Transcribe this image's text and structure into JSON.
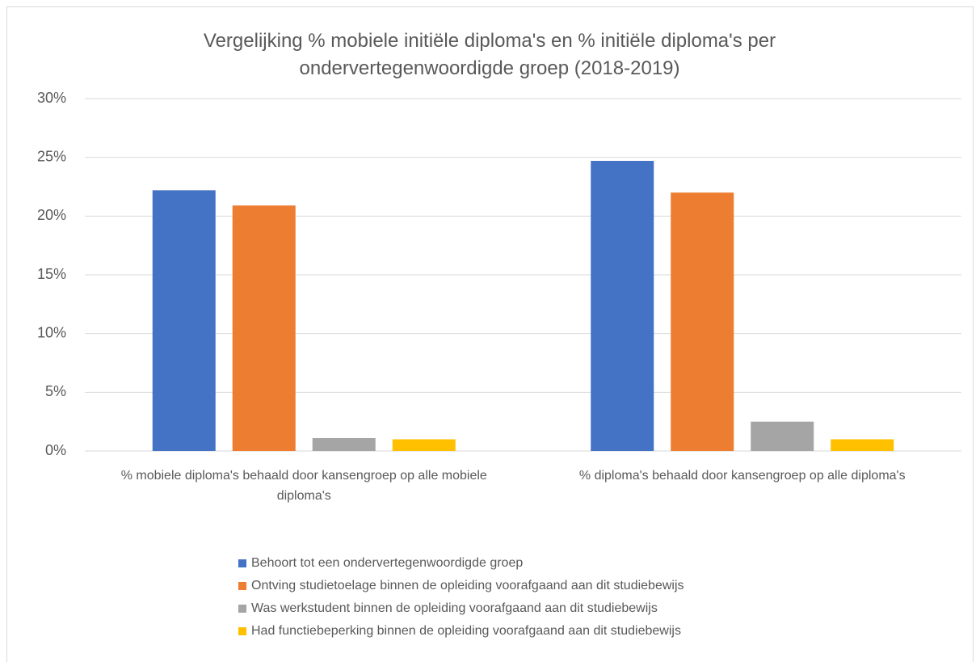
{
  "chart_data": {
    "type": "bar",
    "title": "Vergelijking % mobiele initiële diploma's en % initiële diploma's per ondervertegenwoordigde groep (2018-2019)",
    "categories": [
      "% mobiele diploma's behaald door kansengroep op alle mobiele diploma's",
      "% diploma's behaald door kansengroep op alle diploma's"
    ],
    "series": [
      {
        "name": "Behoort tot een ondervertegenwoordigde groep",
        "color": "#4472c4",
        "values": [
          22.2,
          24.7
        ]
      },
      {
        "name": "Ontving studietoelage binnen de opleiding voorafgaand aan dit studiebewijs",
        "color": "#ed7d31",
        "values": [
          20.9,
          22.0
        ]
      },
      {
        "name": "Was werkstudent binnen de opleiding voorafgaand aan dit studiebewijs",
        "color": "#a5a5a5",
        "values": [
          1.1,
          2.5
        ]
      },
      {
        "name": "Had functiebeperking binnen de opleiding voorafgaand aan dit studiebewijs",
        "color": "#ffc000",
        "values": [
          1.0,
          1.0
        ]
      }
    ],
    "ylim": [
      0,
      30
    ],
    "yticks": [
      {
        "value": 0,
        "label": "0%"
      },
      {
        "value": 5,
        "label": "5%"
      },
      {
        "value": 10,
        "label": "10%"
      },
      {
        "value": 15,
        "label": "15%"
      },
      {
        "value": 20,
        "label": "20%"
      },
      {
        "value": 25,
        "label": "25%"
      },
      {
        "value": 30,
        "label": "30%"
      }
    ],
    "grid": true,
    "legend": "bottom"
  }
}
